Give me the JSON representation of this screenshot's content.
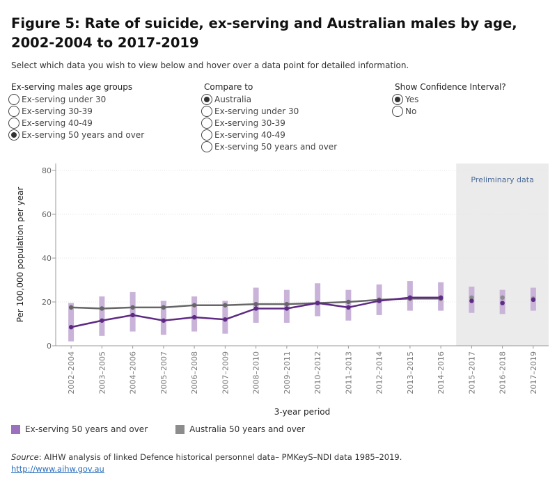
{
  "title": "Figure 5: Rate of suicide, ex-serving and Australian males by age, 2002-2004 to 2017-2019",
  "instructions": "Select which data you wish to view below and hover over a data point for detailed information.",
  "controls": {
    "age_groups": {
      "label": "Ex-serving males age groups",
      "options": [
        "Ex-serving under 30",
        "Ex-serving 30-39",
        "Ex-serving 40-49",
        "Ex-serving 50 years and over"
      ],
      "selected": 3
    },
    "compare_to": {
      "label": "Compare to",
      "options": [
        "Australia",
        "Ex-serving under 30",
        "Ex-serving 30-39",
        "Ex-serving 40-49",
        "Ex-serving 50 years and over"
      ],
      "selected": 0
    },
    "confidence": {
      "label": "Show Confidence Interval?",
      "options": [
        "Yes",
        "No"
      ],
      "selected": 0
    }
  },
  "chart_data": {
    "type": "line",
    "title": "",
    "xlabel": "3-year period",
    "ylabel": "Per 100,000 population per year",
    "ylim": [
      0,
      80
    ],
    "yticks": [
      0,
      20,
      40,
      60,
      80
    ],
    "categories": [
      "2002–2004",
      "2003–2005",
      "2004–2006",
      "2005–2007",
      "2006–2008",
      "2007–2009",
      "2008–2010",
      "2009–2011",
      "2010–2012",
      "2011–2013",
      "2012–2014",
      "2013–2015",
      "2014–2016",
      "2015–2017",
      "2016–2018",
      "2017–2019"
    ],
    "preliminary_label": "Preliminary data",
    "preliminary_categories": [
      "2015–2017",
      "2016–2018",
      "2017–2019"
    ],
    "grid": true,
    "legend_position": "bottom-left",
    "series": [
      {
        "name": "Ex-serving 50 years and over",
        "color": "#5e2a84",
        "ci_color": "#c9b3d9",
        "values": [
          8.5,
          11.5,
          14,
          11.5,
          13,
          12,
          17,
          17,
          19.5,
          17.5,
          20.5,
          22,
          22,
          20.5,
          19.5,
          21
        ],
        "ci_low": [
          2,
          4.5,
          6.5,
          5,
          6.5,
          5.5,
          10.5,
          10.5,
          13.5,
          11.5,
          14,
          16,
          16,
          15,
          14.5,
          16
        ],
        "ci_high": [
          19.5,
          22.5,
          24.5,
          20.5,
          22.5,
          20.5,
          26.5,
          25.5,
          28.5,
          25.5,
          28,
          29.5,
          29,
          27,
          25.5,
          26.5
        ]
      },
      {
        "name": "Australia 50 years and over",
        "color": "#666666",
        "values": [
          17.5,
          17,
          17.5,
          17.5,
          18.5,
          18.5,
          19,
          19,
          19.5,
          20,
          21,
          21.5,
          21.5,
          22,
          22,
          21.5
        ]
      }
    ]
  },
  "legend": [
    {
      "label": "Ex-serving 50 years and over",
      "color": "#9b70bd"
    },
    {
      "label": "Australia 50 years and over",
      "color": "#8c8c8c"
    }
  ],
  "source": {
    "prefix": "Source",
    "text": ": AIHW analysis of linked Defence historical personnel data– PMKeyS–NDI data 1985–2019.",
    "link": "http://www.aihw.gov.au"
  }
}
